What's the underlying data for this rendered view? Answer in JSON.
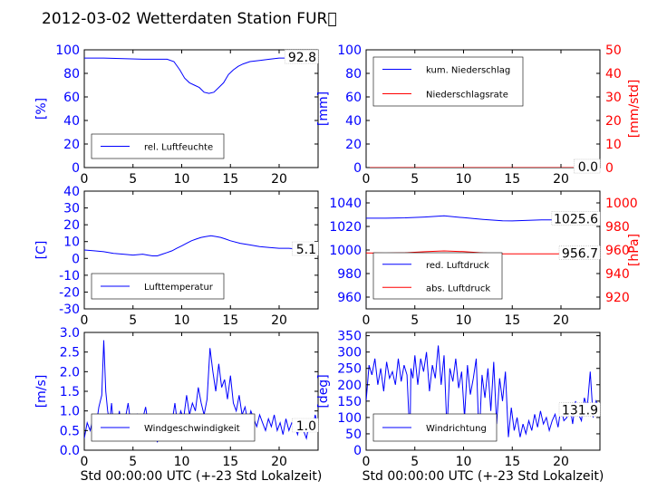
{
  "figure": {
    "title": "2012-03-02 Wetterdaten Station FUR\u0000",
    "xlabel": "Std 00:00:00 UTC (+-23 Std Lokalzeit)"
  },
  "chart_data": [
    {
      "id": "humidity",
      "type": "line",
      "xlim": [
        0,
        24
      ],
      "ylim": [
        0,
        100
      ],
      "yticks": [
        0,
        20,
        40,
        60,
        80,
        100
      ],
      "xticks": [
        0,
        5,
        10,
        15,
        20
      ],
      "ylabel": "[%]",
      "ylabel_color": "#0000ff",
      "series": [
        {
          "name": "rel. Luftfeuchte",
          "color": "#0000ff",
          "x": [
            0,
            2,
            4,
            6,
            7.5,
            8.5,
            9.2,
            9.8,
            10.3,
            10.8,
            11.3,
            11.8,
            12.3,
            12.8,
            13.3,
            13.8,
            14.3,
            14.8,
            15.3,
            15.8,
            16.3,
            17,
            18,
            19,
            20,
            21,
            22,
            23,
            24
          ],
          "y": [
            93,
            93,
            92.5,
            92,
            92,
            92,
            90,
            83,
            76,
            72,
            70,
            68,
            64,
            63,
            64,
            68,
            72,
            79,
            83,
            86,
            88,
            90,
            91,
            92,
            93,
            93,
            93,
            93,
            93
          ]
        }
      ],
      "label": "92.8",
      "legend": "bottom-left"
    },
    {
      "id": "precip",
      "type": "line",
      "xlim": [
        0,
        24
      ],
      "ylim": [
        0,
        100
      ],
      "yticks": [
        0,
        20,
        40,
        60,
        80,
        100
      ],
      "xticks": [
        0,
        5,
        10,
        15,
        20
      ],
      "ylabel": "[mm]",
      "ylabel_color": "#0000ff",
      "y2lim": [
        0,
        50
      ],
      "y2ticks": [
        0,
        10,
        20,
        30,
        40,
        50
      ],
      "y2label": "[mm/std]",
      "y2label_color": "#ff0000",
      "series": [
        {
          "name": "kum. Niederschlag",
          "color": "#0000ff",
          "x": [
            0,
            24
          ],
          "y": [
            0,
            0
          ]
        },
        {
          "name": "Niederschlagsrate",
          "color": "#ff0000",
          "axis": "y2",
          "x": [
            0,
            24
          ],
          "y": [
            0,
            0
          ]
        }
      ],
      "label": "0.0",
      "label2": "0.0",
      "legend": "top-left"
    },
    {
      "id": "temperature",
      "type": "line",
      "xlim": [
        0,
        24
      ],
      "ylim": [
        -30,
        40
      ],
      "yticks": [
        -30,
        -20,
        -10,
        0,
        10,
        20,
        30,
        40
      ],
      "xticks": [
        0,
        5,
        10,
        15,
        20
      ],
      "ylabel": "[C]",
      "ylabel_color": "#0000ff",
      "series": [
        {
          "name": "Lufttemperatur",
          "color": "#0000ff",
          "x": [
            0,
            1,
            2,
            3,
            4,
            5,
            6,
            6.5,
            7,
            7.5,
            8,
            8.5,
            9,
            9.5,
            10,
            10.5,
            11,
            11.5,
            12,
            12.5,
            13,
            13.5,
            14,
            14.5,
            15,
            16,
            17,
            18,
            19,
            20,
            21,
            22,
            23,
            24
          ],
          "y": [
            5,
            4.5,
            4,
            3,
            2.5,
            2,
            2.5,
            2,
            1.5,
            1.5,
            2.5,
            3.5,
            4.5,
            6,
            7.5,
            9,
            10.5,
            11.5,
            12.5,
            13,
            13.5,
            13,
            12.5,
            11.5,
            10.5,
            9,
            8,
            7,
            6.5,
            6,
            6,
            5.5,
            5.5,
            5
          ]
        }
      ],
      "label": "5.1",
      "legend": "bottom-left"
    },
    {
      "id": "pressure",
      "type": "line",
      "xlim": [
        0,
        24
      ],
      "ylim": [
        950,
        1050
      ],
      "yticks": [
        960,
        980,
        1000,
        1020,
        1040
      ],
      "xticks": [
        0,
        5,
        10,
        15,
        20
      ],
      "y2lim": [
        910,
        1010
      ],
      "y2ticks": [
        920,
        940,
        960,
        980,
        1000
      ],
      "y2label": "[hPa]",
      "y2label_color": "#ff0000",
      "series": [
        {
          "name": "red. Luftdruck",
          "color": "#0000ff",
          "x": [
            0,
            2,
            4,
            6,
            8,
            10,
            12,
            14,
            15,
            16,
            18,
            20,
            22,
            24
          ],
          "y": [
            1027,
            1027,
            1027.3,
            1028,
            1029,
            1027.5,
            1026,
            1024.8,
            1024.7,
            1025,
            1025.5,
            1025.6,
            1025.6,
            1025.6
          ]
        },
        {
          "name": "abs. Luftdruck",
          "color": "#ff0000",
          "axis": "y2",
          "x": [
            0,
            2,
            4,
            6,
            8,
            10,
            12,
            14,
            16,
            18,
            20,
            22,
            24
          ],
          "y": [
            957.5,
            957.3,
            957.6,
            958.5,
            959.2,
            958.6,
            957.5,
            956.8,
            956.7,
            956.8,
            956.7,
            956.7,
            956.7
          ]
        }
      ],
      "label": "1025.6",
      "label2": "956.7",
      "legend": "bottom-left"
    },
    {
      "id": "windspeed",
      "type": "line",
      "xlim": [
        0,
        24
      ],
      "ylim": [
        0,
        3
      ],
      "yticks": [
        0.0,
        0.5,
        1.0,
        1.5,
        2.0,
        2.5,
        3.0
      ],
      "xticks": [
        0,
        5,
        10,
        15,
        20
      ],
      "xlabel": "Std 00:00:00 UTC (+-23 Std Lokalzeit)",
      "ylabel": "[m/s]",
      "ylabel_color": "#0000ff",
      "series": [
        {
          "name": "Windgeschwindigkeit",
          "color": "#0000ff",
          "x": [
            0,
            0.3,
            0.6,
            0.9,
            1.2,
            1.5,
            1.8,
            2.0,
            2.2,
            2.4,
            2.6,
            2.8,
            3.0,
            3.3,
            3.6,
            3.9,
            4.2,
            4.5,
            4.8,
            5.1,
            5.4,
            5.7,
            6.0,
            6.3,
            6.6,
            6.9,
            7.2,
            7.5,
            7.8,
            8.1,
            8.4,
            8.7,
            9.0,
            9.3,
            9.6,
            9.9,
            10.2,
            10.5,
            10.8,
            11.1,
            11.4,
            11.7,
            12.0,
            12.3,
            12.6,
            12.9,
            13.2,
            13.5,
            13.8,
            14.1,
            14.4,
            14.7,
            15.0,
            15.3,
            15.6,
            15.9,
            16.2,
            16.5,
            16.8,
            17.1,
            17.4,
            17.7,
            18.0,
            18.3,
            18.6,
            18.9,
            19.2,
            19.5,
            19.8,
            20.1,
            20.4,
            20.7,
            21.0,
            21.3,
            21.6,
            21.9,
            22.2,
            22.5,
            22.8,
            23.1,
            23.4,
            23.7,
            24.0
          ],
          "y": [
            0.3,
            0.7,
            0.5,
            0.8,
            0.6,
            1.1,
            1.4,
            2.8,
            1.5,
            1.0,
            0.7,
            1.2,
            0.6,
            0.5,
            1.0,
            0.4,
            0.8,
            1.2,
            0.6,
            0.7,
            0.9,
            0.5,
            0.8,
            1.1,
            0.6,
            0.3,
            0.7,
            0.2,
            0.6,
            0.4,
            0.8,
            0.5,
            0.7,
            1.2,
            0.6,
            1.0,
            0.8,
            1.4,
            0.9,
            1.2,
            1.0,
            1.6,
            1.2,
            0.9,
            1.3,
            2.6,
            2.0,
            1.5,
            2.2,
            1.6,
            1.8,
            1.3,
            1.9,
            1.2,
            1.0,
            1.4,
            0.9,
            1.1,
            0.7,
            1.0,
            0.8,
            0.6,
            0.9,
            0.7,
            0.5,
            0.8,
            0.6,
            0.9,
            0.5,
            0.7,
            0.4,
            0.8,
            0.5,
            0.7,
            0.6,
            0.4,
            0.8,
            0.5,
            0.3,
            0.7,
            0.5,
            0.9,
            0.6
          ]
        }
      ],
      "label": "1.0",
      "legend": "bottom-left"
    },
    {
      "id": "winddir",
      "type": "line",
      "xlim": [
        0,
        24
      ],
      "ylim": [
        0,
        360
      ],
      "yticks": [
        0,
        50,
        100,
        150,
        200,
        250,
        300,
        350
      ],
      "xticks": [
        0,
        5,
        10,
        15,
        20
      ],
      "xlabel": "Std 00:00:00 UTC (+-23 Std Lokalzeit)",
      "ylabel": "[deg]",
      "ylabel_color": "#0000ff",
      "series": [
        {
          "name": "Windrichtung",
          "color": "#0000ff",
          "x": [
            0,
            0.3,
            0.6,
            0.9,
            1.2,
            1.5,
            1.8,
            2.1,
            2.4,
            2.7,
            3.0,
            3.3,
            3.6,
            3.9,
            4.2,
            4.5,
            4.6,
            4.8,
            5.0,
            5.3,
            5.6,
            5.9,
            6.2,
            6.5,
            6.8,
            7.1,
            7.4,
            7.7,
            8.0,
            8.3,
            8.6,
            8.9,
            9.2,
            9.5,
            9.8,
            10.1,
            10.4,
            10.7,
            11.0,
            11.3,
            11.6,
            11.9,
            12.2,
            12.5,
            12.8,
            13.1,
            13.4,
            13.7,
            14.0,
            14.3,
            14.6,
            14.9,
            15.2,
            15.5,
            15.8,
            16.1,
            16.4,
            16.7,
            17.0,
            17.3,
            17.6,
            17.9,
            18.2,
            18.5,
            18.8,
            19.1,
            19.4,
            19.7,
            20.0,
            20.3,
            20.6,
            20.9,
            21.2,
            21.5,
            21.8,
            22.1,
            22.4,
            22.7,
            23.0,
            23.3,
            23.6,
            24.0
          ],
          "y": [
            150,
            260,
            230,
            280,
            200,
            250,
            180,
            270,
            220,
            240,
            200,
            280,
            210,
            260,
            230,
            30,
            250,
            220,
            290,
            200,
            280,
            240,
            300,
            180,
            260,
            220,
            320,
            200,
            290,
            60,
            250,
            210,
            280,
            190,
            240,
            100,
            260,
            170,
            220,
            280,
            30,
            230,
            160,
            250,
            120,
            270,
            80,
            220,
            150,
            240,
            40,
            130,
            60,
            100,
            40,
            80,
            50,
            90,
            60,
            110,
            70,
            120,
            80,
            100,
            60,
            90,
            110,
            70,
            130,
            90,
            100,
            140,
            80,
            150,
            110,
            90,
            160,
            130,
            240,
            100,
            150,
            120
          ]
        }
      ],
      "label": "131.9",
      "legend": "bottom-left"
    }
  ]
}
